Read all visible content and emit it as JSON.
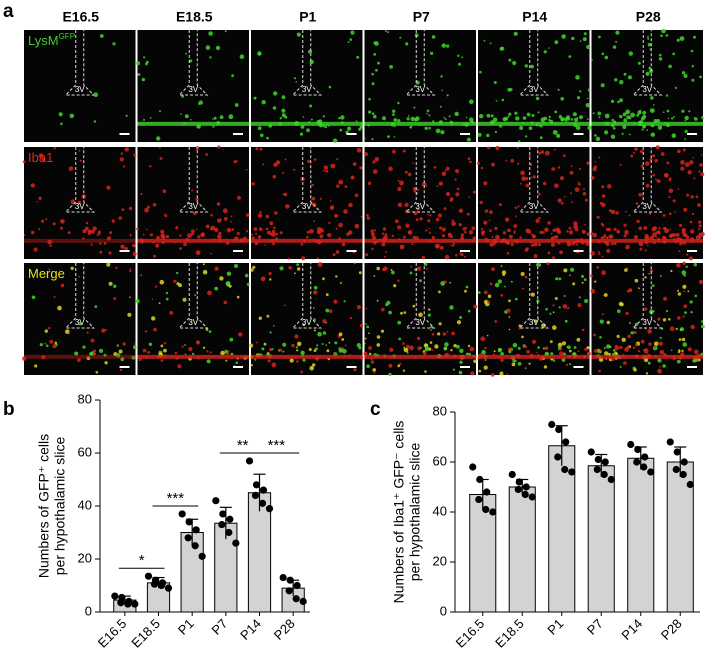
{
  "panel_a": {
    "label": "a",
    "columns": [
      "E16.5",
      "E18.5",
      "P1",
      "P7",
      "P14",
      "P28"
    ],
    "rows": [
      {
        "text": "LysM",
        "superscript": "GFP",
        "color": "#3ecf2a"
      },
      {
        "text": "Iba1",
        "color": "#e8241c"
      },
      {
        "text": "Merge",
        "color": "#e8e21c"
      }
    ],
    "ventricle_label": "3V"
  },
  "chart_data": [
    {
      "type": "bar",
      "panel": "b",
      "ylabel": [
        "Numbers of GFP⁺ cells",
        "per hypothalamic slice"
      ],
      "categories": [
        "E16.5",
        "E18.5",
        "P1",
        "P7",
        "P14",
        "P28"
      ],
      "values": [
        4.5,
        11,
        30,
        33.5,
        45,
        9
      ],
      "errors": [
        1.5,
        2,
        5,
        6,
        7,
        3
      ],
      "points": [
        [
          6,
          5.5,
          4,
          3.5,
          3,
          3
        ],
        [
          13.5,
          12,
          11,
          10.5,
          10,
          9
        ],
        [
          37,
          34,
          31,
          28,
          25,
          21
        ],
        [
          42,
          37,
          35,
          33,
          30,
          26
        ],
        [
          57,
          48,
          46,
          44,
          41,
          39
        ],
        [
          13,
          12,
          10,
          8,
          5,
          4
        ]
      ],
      "significance": [
        {
          "from": 0,
          "to": 1,
          "label": "*"
        },
        {
          "from": 1,
          "to": 2,
          "label": "***"
        },
        {
          "from": 3,
          "to": 4,
          "label": "**"
        },
        {
          "from": 4,
          "to": 5,
          "label": "***"
        }
      ],
      "color": "#d3d3d3",
      "ylim": [
        0,
        80
      ],
      "yticks": [
        0,
        20,
        40,
        60,
        80
      ]
    },
    {
      "type": "bar",
      "panel": "c",
      "ylabel": [
        "Numbers of Iba1⁺ GFP⁻ cells",
        "per hypothalamic slice"
      ],
      "categories": [
        "E16.5",
        "E18.5",
        "P1",
        "P7",
        "P14",
        "P28"
      ],
      "values": [
        47,
        50,
        66.5,
        58.5,
        61.5,
        60
      ],
      "errors": [
        6,
        3,
        8,
        4.5,
        4.5,
        6
      ],
      "points": [
        [
          58,
          53,
          48,
          45,
          41,
          40
        ],
        [
          55,
          52,
          50,
          49,
          47,
          46
        ],
        [
          75,
          73,
          68,
          62,
          57,
          56
        ],
        [
          64,
          61,
          60,
          57,
          55,
          53
        ],
        [
          67,
          65,
          62,
          60,
          58,
          56
        ],
        [
          68,
          64,
          60,
          57,
          55,
          51
        ]
      ],
      "significance": [],
      "color": "#d3d3d3",
      "ylim": [
        0,
        80
      ],
      "yticks": [
        0,
        20,
        40,
        60,
        80
      ]
    }
  ]
}
